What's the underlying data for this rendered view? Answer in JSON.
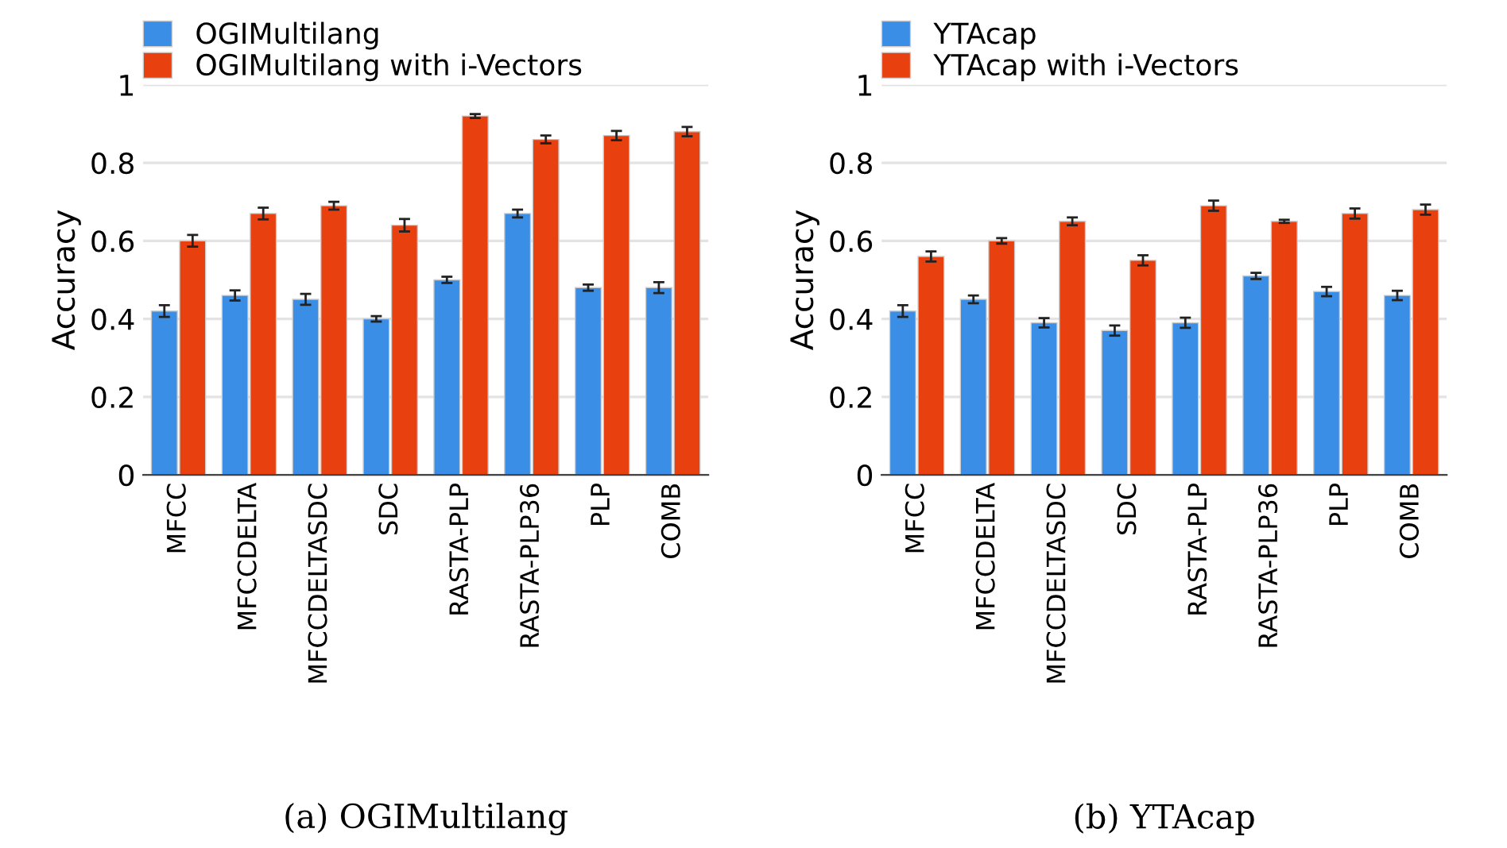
{
  "chart_data": [
    {
      "type": "bar",
      "ylabel": "Accuracy",
      "categories": [
        "MFCC",
        "MFCCDELTA",
        "MFCCDELTASDC",
        "SDC",
        "RASTA-PLP",
        "RASTA-PLP36",
        "PLP",
        "COMB"
      ],
      "series": [
        {
          "name": "OGIMultilang",
          "color": "#3a8ee6",
          "values": [
            0.42,
            0.46,
            0.45,
            0.4,
            0.5,
            0.67,
            0.48,
            0.48
          ],
          "errors": [
            0.015,
            0.013,
            0.014,
            0.007,
            0.008,
            0.01,
            0.008,
            0.014
          ]
        },
        {
          "name": "OGIMultilang with i-Vectors",
          "color": "#e8400f",
          "values": [
            0.6,
            0.67,
            0.69,
            0.64,
            0.92,
            0.86,
            0.87,
            0.88
          ],
          "errors": [
            0.015,
            0.015,
            0.01,
            0.016,
            0.005,
            0.01,
            0.012,
            0.012
          ]
        }
      ],
      "ylim": [
        0,
        1
      ],
      "yticks": [
        0,
        0.2,
        0.4,
        0.6,
        0.8,
        1
      ],
      "grid": "y",
      "legend": "top left",
      "annotations": [
        "(a) OGIMultilang"
      ]
    },
    {
      "type": "bar",
      "ylabel": "Accuracy",
      "categories": [
        "MFCC",
        "MFCCDELTA",
        "MFCCDELTASDC",
        "SDC",
        "RASTA-PLP",
        "RASTA-PLP36",
        "PLP",
        "COMB"
      ],
      "series": [
        {
          "name": "YTAcap",
          "color": "#3a8ee6",
          "values": [
            0.42,
            0.45,
            0.39,
            0.37,
            0.39,
            0.51,
            0.47,
            0.46
          ],
          "errors": [
            0.015,
            0.01,
            0.012,
            0.013,
            0.013,
            0.008,
            0.012,
            0.012
          ]
        },
        {
          "name": "YTAcap with i-Vectors",
          "color": "#e8400f",
          "values": [
            0.56,
            0.6,
            0.65,
            0.55,
            0.69,
            0.65,
            0.67,
            0.68
          ],
          "errors": [
            0.013,
            0.007,
            0.01,
            0.013,
            0.013,
            0.004,
            0.013,
            0.013
          ]
        }
      ],
      "ylim": [
        0,
        1
      ],
      "yticks": [
        0,
        0.2,
        0.4,
        0.6,
        0.8,
        1
      ],
      "grid": "y",
      "legend": "top left",
      "annotations": [
        "(b) YTAcap"
      ]
    }
  ]
}
